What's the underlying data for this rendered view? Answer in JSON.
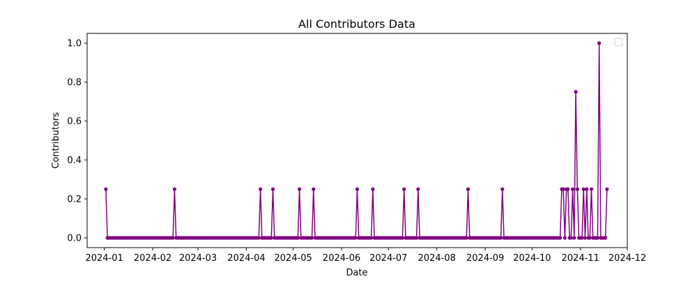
{
  "chart_data": {
    "type": "line",
    "title": "All Contributors Data",
    "xlabel": "Date",
    "ylabel": "Contributors",
    "x_ticks": [
      "2024-01",
      "2024-02",
      "2024-03",
      "2024-04",
      "2024-05",
      "2024-06",
      "2024-07",
      "2024-08",
      "2024-09",
      "2024-10",
      "2024-11",
      "2024-12"
    ],
    "y_ticks": [
      "0.0",
      "0.2",
      "0.4",
      "0.6",
      "0.8",
      "1.0"
    ],
    "xlim": [
      "2023-12-21",
      "2024-12-01"
    ],
    "ylim": [
      -0.05,
      1.05
    ],
    "grid": false,
    "legend": {
      "placement": "top-right",
      "entries": []
    },
    "color": "#800080",
    "series": [
      {
        "date_range": [
          "2024-01-02",
          "2024-11-18"
        ],
        "baseline_value": 0.0,
        "nonzero_points": [
          {
            "x": "2024-01-02",
            "y": 0.25
          },
          {
            "x": "2024-02-15",
            "y": 0.25
          },
          {
            "x": "2024-04-10",
            "y": 0.25
          },
          {
            "x": "2024-04-18",
            "y": 0.25
          },
          {
            "x": "2024-05-05",
            "y": 0.25
          },
          {
            "x": "2024-05-14",
            "y": 0.25
          },
          {
            "x": "2024-06-11",
            "y": 0.25
          },
          {
            "x": "2024-06-21",
            "y": 0.25
          },
          {
            "x": "2024-07-11",
            "y": 0.25
          },
          {
            "x": "2024-07-20",
            "y": 0.25
          },
          {
            "x": "2024-08-21",
            "y": 0.25
          },
          {
            "x": "2024-09-12",
            "y": 0.25
          },
          {
            "x": "2024-10-20",
            "y": 0.25
          },
          {
            "x": "2024-10-21",
            "y": 0.25
          },
          {
            "x": "2024-10-23",
            "y": 0.25
          },
          {
            "x": "2024-10-24",
            "y": 0.25
          },
          {
            "x": "2024-10-27",
            "y": 0.25
          },
          {
            "x": "2024-10-29",
            "y": 0.75
          },
          {
            "x": "2024-10-30",
            "y": 0.25
          },
          {
            "x": "2024-11-03",
            "y": 0.25
          },
          {
            "x": "2024-11-05",
            "y": 0.25
          },
          {
            "x": "2024-11-08",
            "y": 0.25
          },
          {
            "x": "2024-11-13",
            "y": 1.0
          },
          {
            "x": "2024-11-18",
            "y": 0.25
          }
        ]
      }
    ]
  }
}
